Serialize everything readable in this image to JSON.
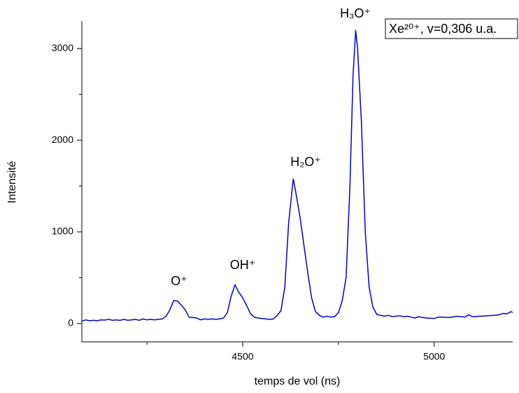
{
  "chart_data": {
    "type": "line",
    "x_label": "temps de vol (ns)",
    "y_label": "Intensité",
    "legend_text": "Xe²⁰⁺, v=0,306 u.a.",
    "annotations": [
      "O⁺",
      "OH⁺",
      "H₂O⁺",
      "H₃O⁺"
    ],
    "xlim": [
      4080,
      5205
    ],
    "xticks": [
      4500,
      5000
    ],
    "xminorticks": [
      4250,
      4750
    ],
    "ylim": [
      -200,
      3300
    ],
    "yticks": [
      0,
      1000,
      2000,
      3000
    ],
    "yminorticks": [
      500,
      1500,
      2500
    ],
    "x": [
      4080,
      4090,
      4100,
      4110,
      4120,
      4130,
      4140,
      4150,
      4160,
      4170,
      4180,
      4190,
      4200,
      4210,
      4220,
      4230,
      4240,
      4250,
      4260,
      4270,
      4280,
      4290,
      4300,
      4310,
      4320,
      4330,
      4340,
      4350,
      4360,
      4370,
      4380,
      4390,
      4400,
      4410,
      4420,
      4430,
      4440,
      4450,
      4460,
      4470,
      4480,
      4490,
      4500,
      4510,
      4520,
      4530,
      4540,
      4550,
      4560,
      4570,
      4580,
      4590,
      4600,
      4610,
      4620,
      4632,
      4640,
      4650,
      4660,
      4670,
      4680,
      4690,
      4700,
      4710,
      4720,
      4730,
      4740,
      4750,
      4760,
      4770,
      4780,
      4788,
      4795,
      4800,
      4810,
      4820,
      4830,
      4840,
      4850,
      4860,
      4870,
      4880,
      4890,
      4900,
      4910,
      4920,
      4930,
      4940,
      4950,
      4960,
      4970,
      4980,
      5000,
      5010,
      5020,
      5040,
      5060,
      5080,
      5090,
      5100,
      5120,
      5140,
      5160,
      5170,
      5180,
      5190,
      5200,
      5205
    ],
    "series": [
      {
        "color": "#0000cc",
        "values": [
          25,
          40,
          30,
          35,
          30,
          40,
          38,
          45,
          35,
          40,
          35,
          45,
          35,
          40,
          45,
          35,
          50,
          40,
          45,
          40,
          45,
          50,
          80,
          150,
          250,
          245,
          200,
          150,
          70,
          65,
          60,
          40,
          50,
          45,
          50,
          45,
          50,
          60,
          120,
          300,
          420,
          340,
          280,
          200,
          110,
          70,
          60,
          55,
          50,
          45,
          50,
          90,
          140,
          400,
          1100,
          1580,
          1400,
          1150,
          850,
          550,
          280,
          130,
          90,
          70,
          80,
          70,
          75,
          120,
          250,
          500,
          1500,
          2700,
          3200,
          3000,
          2200,
          1000,
          400,
          180,
          100,
          90,
          80,
          90,
          75,
          80,
          85,
          75,
          80,
          70,
          60,
          75,
          65,
          60,
          55,
          70,
          70,
          65,
          80,
          70,
          95,
          75,
          80,
          85,
          90,
          95,
          110,
          105,
          130,
          120
        ]
      }
    ]
  }
}
